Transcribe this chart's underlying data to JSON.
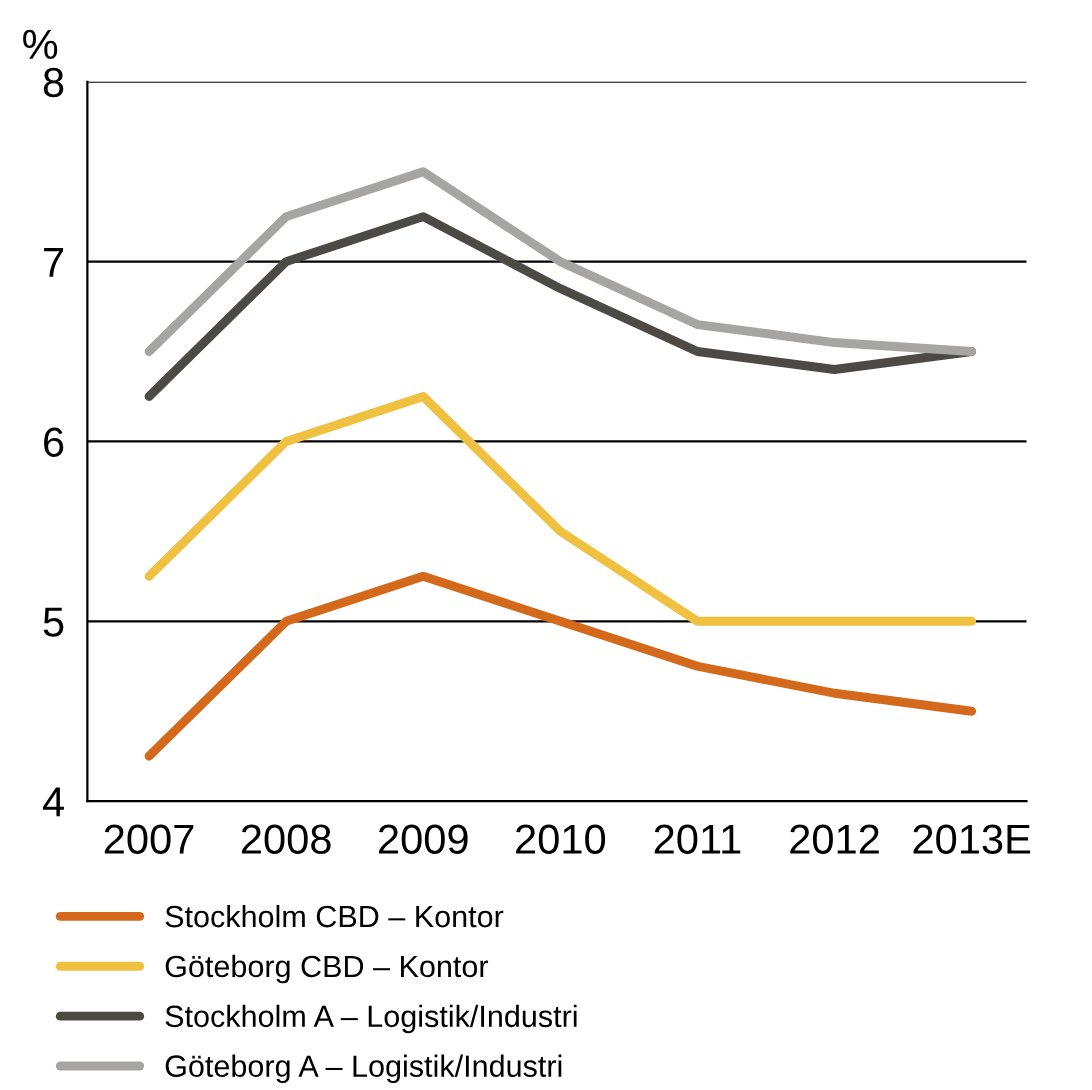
{
  "chart_data": {
    "type": "line",
    "ylabel": "%",
    "categories": [
      "2007",
      "2008",
      "2009",
      "2010",
      "2011",
      "2012",
      "2013E"
    ],
    "series": [
      {
        "name": "Stockholm CBD – Kontor",
        "color": "#d4691c",
        "values": [
          4.25,
          5.0,
          5.25,
          5.0,
          4.75,
          4.6,
          4.5
        ]
      },
      {
        "name": "Göteborg CBD – Kontor",
        "color": "#f0c040",
        "values": [
          5.25,
          6.0,
          6.25,
          5.5,
          5.0,
          5.0,
          5.0
        ]
      },
      {
        "name": "Stockholm A – Logistik/Industri",
        "color": "#4d4a45",
        "values": [
          6.25,
          7.0,
          7.25,
          6.85,
          6.5,
          6.4,
          6.5
        ]
      },
      {
        "name": "Göteborg A – Logistik/Industri",
        "color": "#a7a5a3",
        "values": [
          6.5,
          7.25,
          7.5,
          7.0,
          6.65,
          6.55,
          6.5
        ]
      }
    ],
    "ylim": [
      4,
      8
    ],
    "yticks": [
      4,
      5,
      6,
      7,
      8
    ],
    "grid": "y",
    "legend": "bottom",
    "marker": "none",
    "line_style": "solid"
  }
}
